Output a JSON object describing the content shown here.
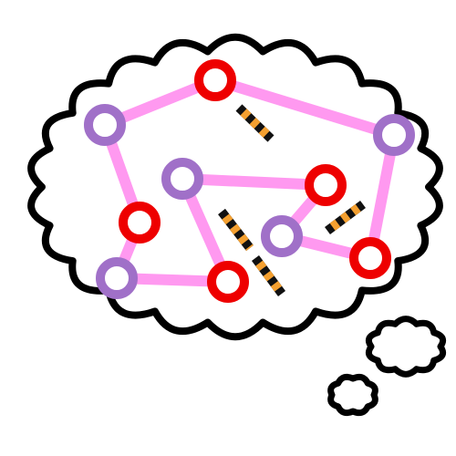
{
  "colors": {
    "background": "#ffffff",
    "cloud_fill": "#ffffff",
    "cloud_outline": "#000000",
    "edge": "#ff99f0",
    "node_red": "#ee0000",
    "node_purple": "#a070c8",
    "node_center": "#ffffff",
    "hazard_dark": "#111111",
    "hazard_light": "#f4a030"
  },
  "puzzle": {
    "nodes": [
      {
        "id": "n1",
        "color": "red"
      },
      {
        "id": "n2",
        "color": "purple"
      },
      {
        "id": "n3",
        "color": "purple"
      },
      {
        "id": "n4",
        "color": "purple"
      },
      {
        "id": "n5",
        "color": "red"
      },
      {
        "id": "n6",
        "color": "red"
      },
      {
        "id": "n7",
        "color": "purple"
      },
      {
        "id": "n8",
        "color": "red"
      },
      {
        "id": "n9",
        "color": "purple"
      },
      {
        "id": "n10",
        "color": "red"
      }
    ],
    "edges": [
      [
        "n1",
        "n2"
      ],
      [
        "n1",
        "n3"
      ],
      [
        "n2",
        "n6"
      ],
      [
        "n6",
        "n9"
      ],
      [
        "n9",
        "n10"
      ],
      [
        "n4",
        "n5"
      ],
      [
        "n4",
        "n10"
      ],
      [
        "n5",
        "n7"
      ],
      [
        "n7",
        "n8"
      ],
      [
        "n3",
        "n8"
      ]
    ],
    "barriers": [
      {
        "id": "barrier-1"
      },
      {
        "id": "barrier-2"
      },
      {
        "id": "barrier-3"
      },
      {
        "id": "barrier-4"
      }
    ]
  }
}
